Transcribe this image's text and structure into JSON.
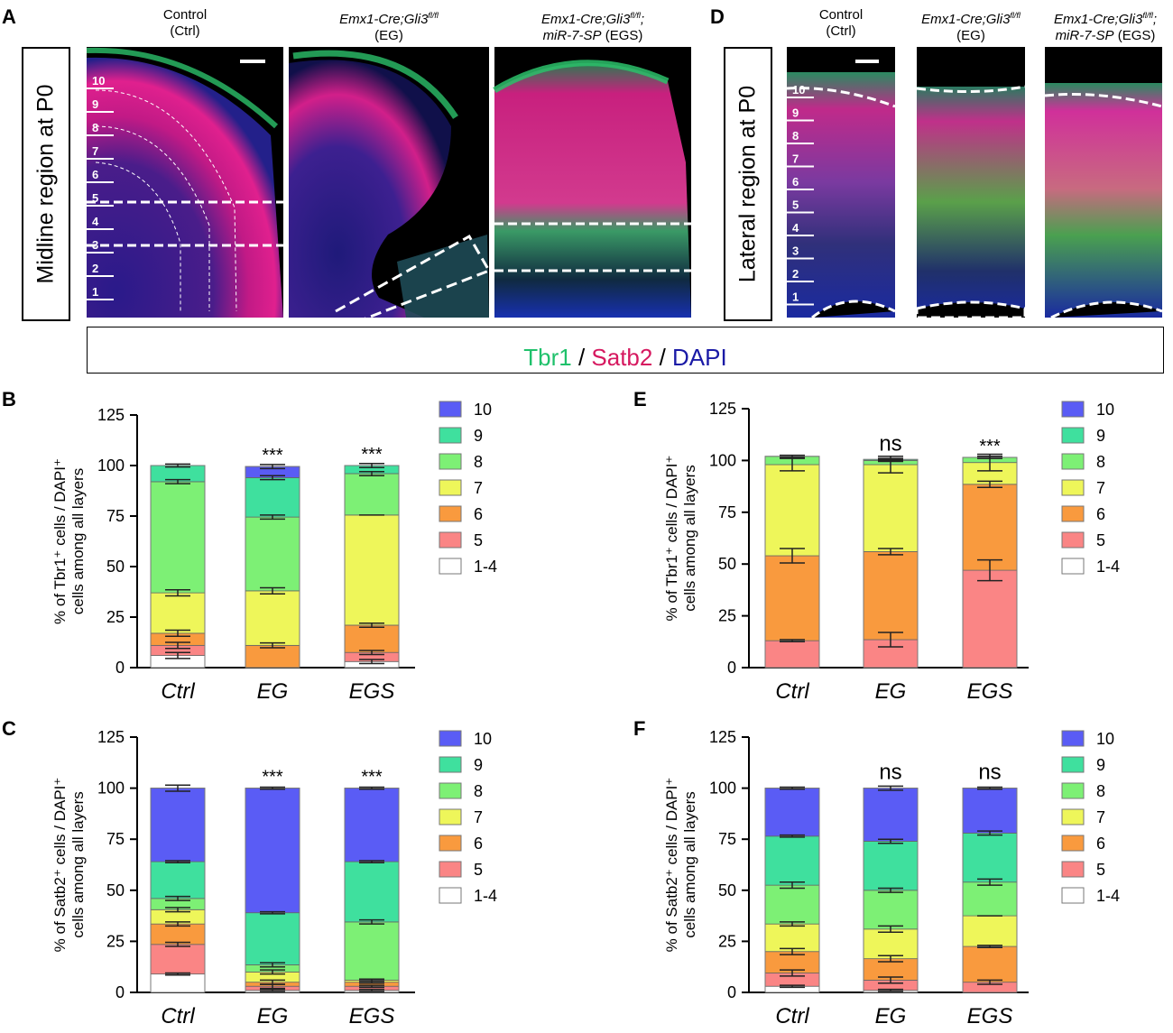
{
  "panel_letters": {
    "A": "A",
    "B": "B",
    "C": "C",
    "D": "D",
    "E": "E",
    "F": "F"
  },
  "microscopy": {
    "midline_label": "Midline region at P0",
    "lateral_label": "Lateral region at P0",
    "titles": {
      "ctrl_line1": "Control",
      "ctrl_line2": "(Ctrl)",
      "eg_line1": "Emx1-Cre;Gli3",
      "eg_sup": "fl/fl",
      "eg_line2": "(EG)",
      "egs_line1": "Emx1-Cre;Gli3",
      "egs_sup": "fl/fl",
      "egs_line1_end": ";",
      "egs_line2_it": "miR-7-SP",
      "egs_line2_end": " (EGS)"
    },
    "layers_midline": [
      "10",
      "9",
      "8",
      "7",
      "6",
      "5",
      "4",
      "3",
      "2",
      "1"
    ],
    "layers_lateral": [
      "10",
      "9",
      "8",
      "7",
      "6",
      "5",
      "4",
      "3",
      "2",
      "1"
    ],
    "stain_legend": {
      "tbr1": "Tbr1",
      "sep1": " / ",
      "satb2": "Satb2",
      "sep2": " / ",
      "dapi": "DAPI"
    },
    "colors": {
      "tbr1": "#1fc16b",
      "satb2": "#d6185f",
      "dapi": "#1a1aa6"
    }
  },
  "chart_data": [
    {
      "id": "B",
      "type": "bar",
      "stacked": true,
      "categories": [
        "Ctrl",
        "EG",
        "EGS"
      ],
      "ylabel_line1": "% of Tbr1⁺ cells / DAPI⁺",
      "ylabel_line2": "cells among all layers",
      "ylim": [
        0,
        125
      ],
      "yticks": [
        "0",
        "25",
        "50",
        "75",
        "100",
        "125"
      ],
      "significance": [
        "",
        "***",
        "***"
      ],
      "legend_labels": [
        "10",
        "9",
        "8",
        "7",
        "6",
        "5",
        "1-4"
      ],
      "series": [
        {
          "name": "1-4",
          "color": "#ffffff",
          "values": [
            6,
            0,
            3
          ]
        },
        {
          "name": "5",
          "color": "#fa8585",
          "values": [
            5,
            0,
            4.5
          ]
        },
        {
          "name": "6",
          "color": "#f99a3e",
          "values": [
            6,
            11,
            13.5
          ]
        },
        {
          "name": "7",
          "color": "#eef65a",
          "values": [
            20,
            27,
            54.5
          ]
        },
        {
          "name": "8",
          "color": "#7df075",
          "values": [
            55,
            36.5,
            20.5
          ]
        },
        {
          "name": "9",
          "color": "#3fe09e",
          "values": [
            8,
            19.5,
            4
          ]
        },
        {
          "name": "10",
          "color": "#5a5cf5",
          "values": [
            0,
            5.5,
            0
          ]
        }
      ],
      "errors": [
        [
          1.5,
          1.5,
          1.5,
          1.5,
          1,
          0.7,
          0
        ],
        [
          0,
          0,
          1.2,
          1.5,
          1,
          1,
          1
        ],
        [
          1,
          1,
          1,
          0,
          1,
          1,
          0
        ]
      ]
    },
    {
      "id": "C",
      "type": "bar",
      "stacked": true,
      "categories": [
        "Ctrl",
        "EG",
        "EGS"
      ],
      "ylabel_line1": "% of Satb2⁺ cells / DAPI⁺",
      "ylabel_line2": "cells among all layers",
      "ylim": [
        0,
        125
      ],
      "yticks": [
        "0",
        "25",
        "50",
        "75",
        "100",
        "125"
      ],
      "significance": [
        "",
        "***",
        "***"
      ],
      "legend_labels": [
        "10",
        "9",
        "8",
        "7",
        "6",
        "5",
        "1-4"
      ],
      "series": [
        {
          "name": "1-4",
          "color": "#ffffff",
          "values": [
            9,
            1,
            1
          ]
        },
        {
          "name": "5",
          "color": "#fa8585",
          "values": [
            14.5,
            2,
            2
          ]
        },
        {
          "name": "6",
          "color": "#f99a3e",
          "values": [
            10,
            2,
            2
          ]
        },
        {
          "name": "7",
          "color": "#eef65a",
          "values": [
            7,
            5,
            1
          ]
        },
        {
          "name": "8",
          "color": "#7df075",
          "values": [
            5.5,
            3.5,
            28.5
          ]
        },
        {
          "name": "9",
          "color": "#3fe09e",
          "values": [
            18,
            25.5,
            29.5
          ]
        },
        {
          "name": "10",
          "color": "#5a5cf5",
          "values": [
            36,
            61,
            36
          ]
        }
      ],
      "errors": [
        [
          0.5,
          1,
          1,
          1,
          1,
          0.5,
          1.5
        ],
        [
          0.5,
          1,
          1,
          1,
          1,
          0.5,
          0.5
        ],
        [
          0.5,
          0.5,
          0.5,
          0.5,
          1,
          0.5,
          0.5
        ]
      ]
    },
    {
      "id": "E",
      "type": "bar",
      "stacked": true,
      "categories": [
        "Ctrl",
        "EG",
        "EGS"
      ],
      "ylabel_line1": "% of Tbr1⁺ cells / DAPI⁺",
      "ylabel_line2": "cells among all layers",
      "ylim": [
        0,
        125
      ],
      "yticks": [
        "0",
        "25",
        "50",
        "75",
        "100",
        "125"
      ],
      "significance": [
        "",
        "ns",
        "***"
      ],
      "legend_labels": [
        "10",
        "9",
        "8",
        "7",
        "6",
        "5",
        "1-4"
      ],
      "series": [
        {
          "name": "1-4",
          "color": "#ffffff",
          "values": [
            0,
            0,
            0
          ]
        },
        {
          "name": "5",
          "color": "#fa8585",
          "values": [
            13,
            13.5,
            47
          ]
        },
        {
          "name": "6",
          "color": "#f99a3e",
          "values": [
            41,
            42.5,
            41.5
          ]
        },
        {
          "name": "7",
          "color": "#eef65a",
          "values": [
            44,
            42,
            10.5
          ]
        },
        {
          "name": "8",
          "color": "#7df075",
          "values": [
            4,
            2,
            2.5
          ]
        },
        {
          "name": "9",
          "color": "#3fe09e",
          "values": [
            0,
            0.5,
            0
          ]
        },
        {
          "name": "10",
          "color": "#5a5cf5",
          "values": [
            0,
            0,
            0
          ]
        }
      ],
      "errors": [
        [
          0,
          0.5,
          3.5,
          3,
          0.5,
          0,
          0
        ],
        [
          0,
          3.5,
          1.5,
          4,
          0.5,
          0.5,
          0
        ],
        [
          0,
          5,
          1.5,
          4,
          0.5,
          0,
          0
        ]
      ]
    },
    {
      "id": "F",
      "type": "bar",
      "stacked": true,
      "categories": [
        "Ctrl",
        "EG",
        "EGS"
      ],
      "ylabel_line1": "% of Satb2⁺ cells / DAPI⁺",
      "ylabel_line2": "cells among all layers",
      "ylim": [
        0,
        125
      ],
      "yticks": [
        "0",
        "25",
        "50",
        "75",
        "100",
        "125"
      ],
      "significance": [
        "",
        "ns",
        "ns"
      ],
      "legend_labels": [
        "10",
        "9",
        "8",
        "7",
        "6",
        "5",
        "1-4"
      ],
      "series": [
        {
          "name": "1-4",
          "color": "#ffffff",
          "values": [
            3,
            1,
            0
          ]
        },
        {
          "name": "5",
          "color": "#fa8585",
          "values": [
            6.5,
            5,
            5
          ]
        },
        {
          "name": "6",
          "color": "#f99a3e",
          "values": [
            10.5,
            10.5,
            17.5
          ]
        },
        {
          "name": "7",
          "color": "#eef65a",
          "values": [
            13.5,
            14.5,
            15
          ]
        },
        {
          "name": "8",
          "color": "#7df075",
          "values": [
            19,
            19,
            16.5
          ]
        },
        {
          "name": "9",
          "color": "#3fe09e",
          "values": [
            24,
            24,
            24
          ]
        },
        {
          "name": "10",
          "color": "#5a5cf5",
          "values": [
            23.5,
            26,
            22
          ]
        }
      ],
      "errors": [
        [
          0.5,
          1.5,
          1.5,
          1,
          1.5,
          0.5,
          0.5
        ],
        [
          0.5,
          1.5,
          1.5,
          1.5,
          1,
          1,
          1
        ],
        [
          0,
          1,
          0.5,
          0,
          1.5,
          1,
          0.5
        ]
      ]
    }
  ]
}
